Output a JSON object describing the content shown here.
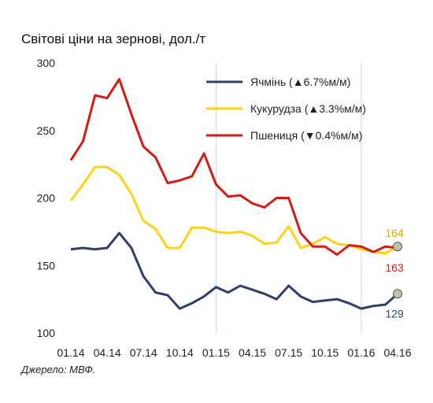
{
  "title": "Світові ціни на зернові, дол./т",
  "source": "Джерело: МВФ.",
  "chart_data": {
    "type": "line",
    "title": "Світові ціни на зернові, дол./т",
    "ylim": [
      100,
      300
    ],
    "y_ticks": [
      100,
      150,
      200,
      250,
      300
    ],
    "x_tick_labels": [
      "01.14",
      "04.14",
      "07.14",
      "10.14",
      "01.15",
      "04.15",
      "07.15",
      "10.15",
      "01.16",
      "04.16"
    ],
    "x": [
      "01.14",
      "02.14",
      "03.14",
      "04.14",
      "05.14",
      "06.14",
      "07.14",
      "08.14",
      "09.14",
      "10.14",
      "11.14",
      "12.14",
      "01.15",
      "02.15",
      "03.15",
      "04.15",
      "05.15",
      "06.15",
      "07.15",
      "08.15",
      "09.15",
      "10.15",
      "11.15",
      "12.15",
      "01.16",
      "02.16",
      "03.16",
      "04.16"
    ],
    "grid": "vertical-at-year-start",
    "legend_position": "top-right",
    "series": [
      {
        "name": "Ячмінь (▲6.7%м/м)",
        "color": "#2e3f6b",
        "end_label": "129",
        "values": [
          162,
          163,
          162,
          163,
          174,
          163,
          142,
          130,
          128,
          118,
          122,
          127,
          134,
          130,
          135,
          132,
          129,
          125,
          135,
          127,
          123,
          124,
          125,
          122,
          118,
          120,
          121,
          129
        ]
      },
      {
        "name": "Кукурудза (▲3.3%м/м)",
        "color": "#ffd21a",
        "end_label": "164",
        "values": [
          198,
          210,
          223,
          223,
          217,
          203,
          183,
          177,
          163,
          163,
          178,
          178,
          175,
          174,
          175,
          172,
          166,
          167,
          179,
          163,
          166,
          171,
          166,
          165,
          162,
          160,
          159,
          164
        ]
      },
      {
        "name": "Пшениця (▼0.4%м/м)",
        "color": "#d41c17",
        "end_label": "163",
        "values": [
          228,
          242,
          276,
          274,
          288,
          262,
          238,
          230,
          211,
          213,
          216,
          233,
          210,
          201,
          202,
          196,
          193,
          200,
          200,
          174,
          164,
          164,
          158,
          165,
          164,
          160,
          164,
          163
        ]
      }
    ]
  }
}
